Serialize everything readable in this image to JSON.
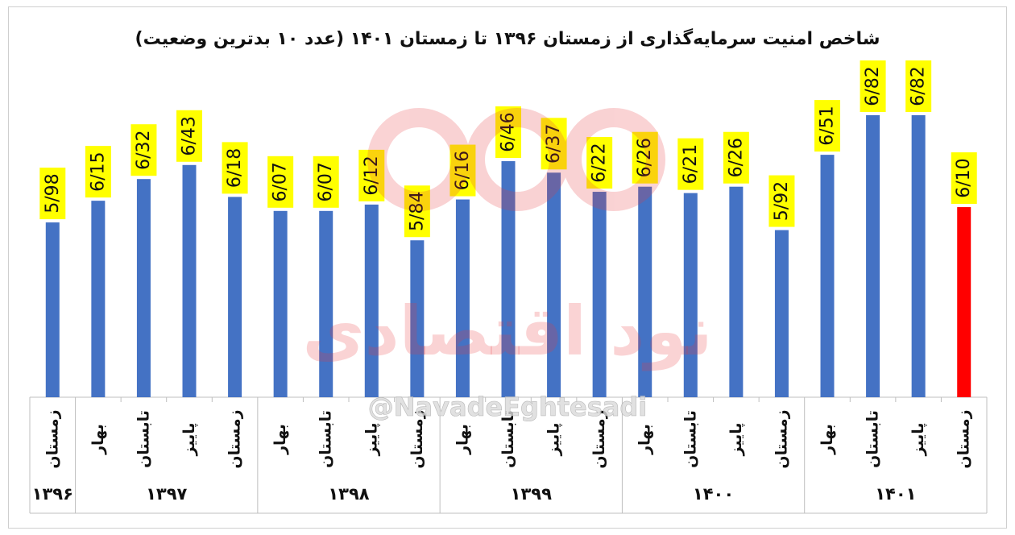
{
  "chart_data": {
    "type": "bar",
    "title": "شاخص امنیت سرمایه‌گذاری از زمستان ۱۳۹۶ تا زمستان ۱۴۰۱ (عدد ۱۰ بدترین وضعیت)",
    "categories": [
      {
        "season": "زمستان",
        "year": "۱۳۹۶"
      },
      {
        "season": "بهار",
        "year": "۱۳۹۷"
      },
      {
        "season": "تابستان",
        "year": "۱۳۹۷"
      },
      {
        "season": "پاییز",
        "year": "۱۳۹۷"
      },
      {
        "season": "زمستان",
        "year": "۱۳۹۷"
      },
      {
        "season": "بهار",
        "year": "۱۳۹۸"
      },
      {
        "season": "تابستان",
        "year": "۱۳۹۸"
      },
      {
        "season": "پاییز",
        "year": "۱۳۹۸"
      },
      {
        "season": "زمستان",
        "year": "۱۳۹۸"
      },
      {
        "season": "بهار",
        "year": "۱۳۹۹"
      },
      {
        "season": "تابستان",
        "year": "۱۳۹۹"
      },
      {
        "season": "پاییز",
        "year": "۱۳۹۹"
      },
      {
        "season": "زمستان",
        "year": "۱۳۹۹"
      },
      {
        "season": "بهار",
        "year": "۱۴۰۰"
      },
      {
        "season": "تابستان",
        "year": "۱۴۰۰"
      },
      {
        "season": "پاییز",
        "year": "۱۴۰۰"
      },
      {
        "season": "زمستان",
        "year": "۱۴۰۰"
      },
      {
        "season": "بهار",
        "year": "۱۴۰۱"
      },
      {
        "season": "تابستان",
        "year": "۱۴۰۱"
      },
      {
        "season": "پاییز",
        "year": "۱۴۰۱"
      },
      {
        "season": "زمستان",
        "year": "۱۴۰۱"
      }
    ],
    "values": [
      5.98,
      6.15,
      6.32,
      6.43,
      6.18,
      6.07,
      6.07,
      6.12,
      5.84,
      6.16,
      6.46,
      6.37,
      6.22,
      6.26,
      6.21,
      6.26,
      5.92,
      6.51,
      6.82,
      6.82,
      6.1
    ],
    "labels": [
      "5/98",
      "6/15",
      "6/32",
      "6/43",
      "6/18",
      "6/07",
      "6/07",
      "6/12",
      "5/84",
      "6/16",
      "6/46",
      "6/37",
      "6/22",
      "6/26",
      "6/21",
      "6/26",
      "5/92",
      "6/51",
      "6/82",
      "6/82",
      "6/10"
    ],
    "year_groups": [
      {
        "year": "۱۳۹۶",
        "count": 1
      },
      {
        "year": "۱۳۹۷",
        "count": 4
      },
      {
        "year": "۱۳۹۸",
        "count": 4
      },
      {
        "year": "۱۳۹۹",
        "count": 4
      },
      {
        "year": "۱۴۰۰",
        "count": 4
      },
      {
        "year": "۱۴۰۱",
        "count": 4
      }
    ],
    "highlight_index": 20,
    "colors": {
      "bar": "#4472C4",
      "highlight": "#FF0000",
      "label_bg": "#FFFF00",
      "watermark": "#E8383D"
    },
    "grid": false
  },
  "watermark": {
    "brand_text": "نود اقتصادی",
    "handle_text": "@NavadeEghtesadi"
  }
}
